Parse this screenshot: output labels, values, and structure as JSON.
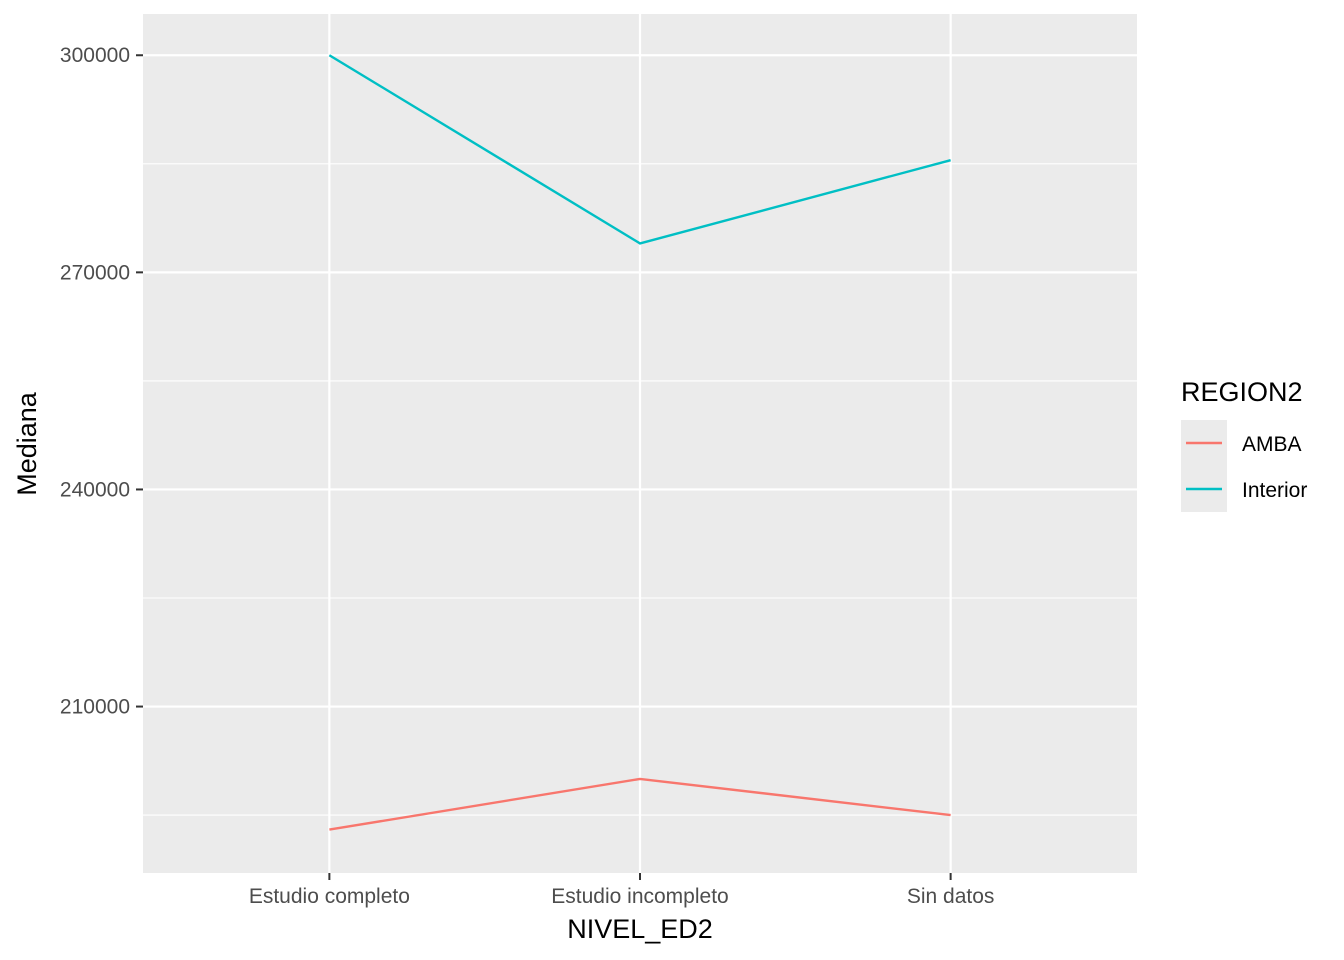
{
  "chart_data": {
    "type": "line",
    "title": "",
    "xlabel": "NIVEL_ED2",
    "ylabel": "Mediana",
    "categories": [
      "Estudio completo",
      "Estudio incompleto",
      "Sin datos"
    ],
    "y_ticks": [
      210000,
      240000,
      270000,
      300000
    ],
    "y_tick_labels": [
      "210000",
      "240000",
      "270000",
      "300000"
    ],
    "ylim": [
      187000,
      305700
    ],
    "grid": true,
    "legend": {
      "title": "REGION2",
      "position": "right"
    },
    "series": [
      {
        "name": "AMBA",
        "color": "#F8766D",
        "values": [
          193000,
          200000,
          195000
        ]
      },
      {
        "name": "Interior",
        "color": "#00BFC4",
        "values": [
          300000,
          274000,
          285500
        ]
      }
    ]
  }
}
